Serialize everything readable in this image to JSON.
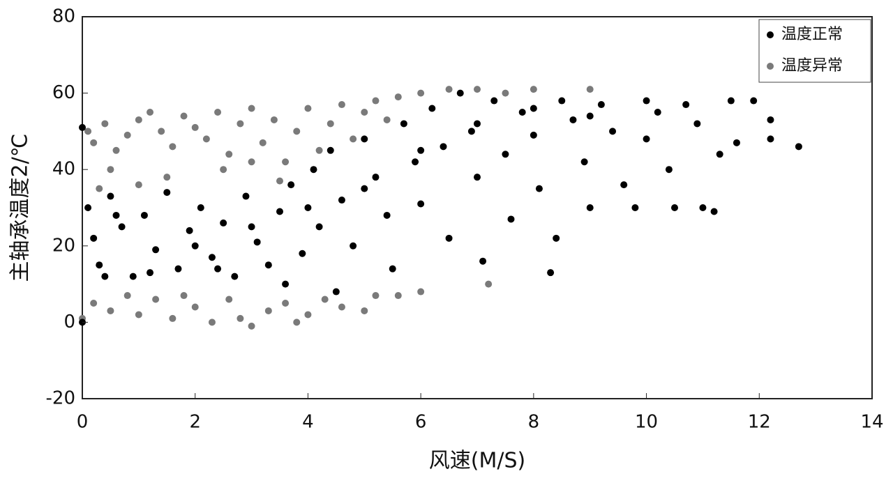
{
  "chart_data": {
    "type": "scatter",
    "xlabel": "风速(M/S)",
    "ylabel": "主轴承温度2/℃",
    "xlim": [
      0,
      14
    ],
    "xticks": [
      0,
      2,
      4,
      6,
      8,
      10,
      12,
      14
    ],
    "ylim": [
      -20,
      80
    ],
    "yticks": [
      -20,
      0,
      20,
      40,
      60,
      80
    ],
    "legend": "upper right",
    "series": [
      {
        "name": "温度异常",
        "color": "#7a7a7a",
        "x": [
          0.1,
          0.2,
          0.4,
          0.6,
          0.8,
          1,
          1.2,
          1.4,
          1.6,
          1.8,
          2,
          2.2,
          2.4,
          2.6,
          2.8,
          3,
          3.2,
          3.4,
          3.6,
          3.8,
          4,
          4.2,
          4.4,
          4.6,
          4.8,
          5,
          5.2,
          5.4,
          5.6,
          6,
          6.5,
          7,
          7.5,
          8,
          9,
          1.5,
          2.5,
          3.5,
          0.5,
          1,
          3,
          0.3,
          0,
          0.2,
          0.5,
          0.8,
          1,
          1.3,
          1.6,
          2,
          2.3,
          2.6,
          3,
          3.3,
          3.6,
          4,
          4.3,
          4.6,
          5,
          5.2,
          5.6,
          6,
          7.2,
          2.8,
          3.8,
          1.8
        ],
        "y": [
          50,
          47,
          52,
          45,
          49,
          53,
          55,
          50,
          46,
          54,
          51,
          48,
          55,
          44,
          52,
          56,
          47,
          53,
          42,
          50,
          56,
          45,
          52,
          57,
          48,
          55,
          58,
          53,
          59,
          60,
          61,
          61,
          60,
          61,
          61,
          38,
          40,
          37,
          40,
          36,
          42,
          35,
          1,
          5,
          3,
          7,
          2,
          6,
          1,
          4,
          0,
          6,
          -1,
          3,
          5,
          2,
          6,
          4,
          3,
          7,
          7,
          8,
          10,
          1,
          0,
          7
        ]
      },
      {
        "name": "温度正常",
        "color": "#000000",
        "x": [
          0,
          0,
          0.1,
          0.2,
          0.3,
          0.5,
          0.7,
          0.9,
          1.1,
          1.3,
          1.5,
          1.7,
          1.9,
          2.1,
          2.3,
          2.5,
          2.7,
          2.9,
          3.1,
          3.3,
          3.5,
          3.7,
          3.9,
          4.1,
          4.2,
          4.4,
          4.6,
          4.8,
          5,
          5.2,
          5.4,
          5.5,
          5.7,
          5.9,
          6,
          6.2,
          6.4,
          6.5,
          6.7,
          6.9,
          7,
          7.1,
          7.3,
          7.5,
          7.6,
          7.8,
          8,
          8.1,
          8.3,
          8.4,
          8.5,
          8.7,
          8.9,
          9,
          9.2,
          9.4,
          9.6,
          9.8,
          10,
          10,
          10.2,
          10.4,
          10.5,
          10.7,
          10.9,
          11,
          11.2,
          11.3,
          11.5,
          11.6,
          11.9,
          12.2,
          12.2,
          12.7,
          0.4,
          1.2,
          2.4,
          3.6,
          4.5,
          0.6,
          2,
          3,
          4,
          5,
          6,
          7,
          8,
          9
        ],
        "y": [
          51,
          0,
          30,
          22,
          15,
          33,
          25,
          12,
          28,
          19,
          34,
          14,
          24,
          30,
          17,
          26,
          12,
          33,
          21,
          15,
          29,
          36,
          18,
          40,
          25,
          45,
          32,
          20,
          48,
          38,
          28,
          14,
          52,
          42,
          31,
          56,
          46,
          22,
          60,
          50,
          38,
          16,
          58,
          44,
          27,
          55,
          49,
          35,
          13,
          22,
          58,
          53,
          42,
          30,
          57,
          50,
          36,
          30,
          58,
          48,
          55,
          40,
          30,
          57,
          52,
          30,
          29,
          44,
          58,
          47,
          58,
          53,
          48,
          46,
          12,
          13,
          14,
          10,
          8,
          28,
          20,
          25,
          30,
          35,
          45,
          52,
          56,
          54
        ]
      }
    ]
  }
}
